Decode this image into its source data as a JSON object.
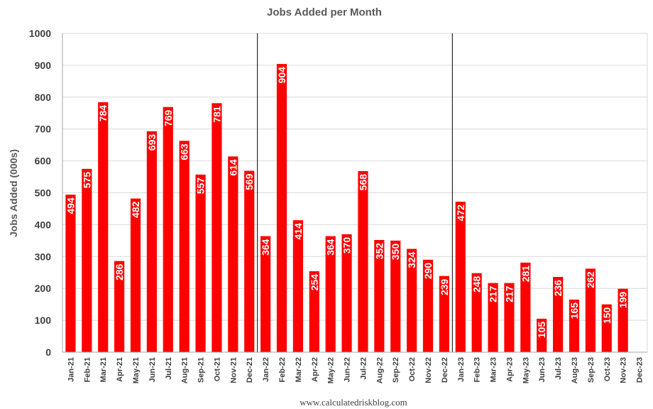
{
  "chart_data": {
    "type": "bar",
    "title": "Jobs Added per Month",
    "ylabel": "Jobs Added (000s)",
    "xlabel": "",
    "ylim": [
      0,
      1000
    ],
    "yticks": [
      0,
      100,
      200,
      300,
      400,
      500,
      600,
      700,
      800,
      900,
      1000
    ],
    "grid": true,
    "bar_color": "#ff0000",
    "categories": [
      "Jan-21",
      "Feb-21",
      "Mar-21",
      "Apr-21",
      "May-21",
      "Jun-21",
      "Jul-21",
      "Aug-21",
      "Sep-21",
      "Oct-21",
      "Nov-21",
      "Dec-21",
      "Jan-22",
      "Feb-22",
      "Mar-22",
      "Apr-22",
      "May-22",
      "Jun-22",
      "Jul-22",
      "Aug-22",
      "Sep-22",
      "Oct-22",
      "Nov-22",
      "Dec-22",
      "Jan-23",
      "Feb-23",
      "Mar-23",
      "Apr-23",
      "May-23",
      "Jun-23",
      "Jul-23",
      "Aug-23",
      "Sep-23",
      "Oct-23",
      "Nov-23",
      "Dec-23"
    ],
    "values": [
      494,
      575,
      784,
      286,
      482,
      693,
      769,
      663,
      557,
      781,
      614,
      569,
      364,
      904,
      414,
      254,
      364,
      370,
      568,
      352,
      350,
      324,
      290,
      239,
      472,
      248,
      217,
      217,
      281,
      105,
      236,
      165,
      262,
      150,
      199,
      null
    ],
    "year_separators_after": [
      "Dec-21",
      "Dec-22"
    ],
    "source": "www.calculatedriskblog.com"
  }
}
